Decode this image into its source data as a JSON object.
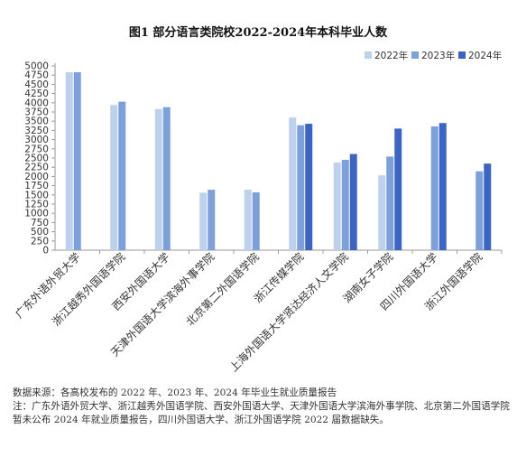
{
  "chart_data": {
    "type": "bar",
    "title": "图1  部分语言类院校2022-2024年本科毕业人数",
    "categories": [
      "广东外语外贸大学",
      "浙江越秀外国语学院",
      "西安外国语大学",
      "天津外国语大学滨海外事学院",
      "北京第二外国语学院",
      "浙江传媒学院",
      "上海外国语大学贤达经济人文学院",
      "湖南女子学院",
      "四川外国语大学",
      "浙江外国语学院"
    ],
    "series": [
      {
        "name": "2022年",
        "color": "#bdd1ec",
        "values": [
          4830,
          3940,
          3830,
          1560,
          1640,
          3600,
          2380,
          2030,
          null,
          null
        ]
      },
      {
        "name": "2023年",
        "color": "#7d9fda",
        "values": [
          4830,
          4030,
          3880,
          1640,
          1570,
          3390,
          2450,
          2540,
          3360,
          2140
        ]
      },
      {
        "name": "2024年",
        "color": "#3b64c4",
        "values": [
          null,
          null,
          null,
          null,
          null,
          3430,
          2610,
          3300,
          3450,
          2350
        ]
      }
    ],
    "ylim": [
      0,
      5000
    ],
    "yticks": [
      0,
      250,
      500,
      750,
      1000,
      1250,
      1500,
      1750,
      2000,
      2250,
      2500,
      2750,
      3000,
      3250,
      3500,
      3750,
      4000,
      4250,
      4500,
      4750,
      5000
    ],
    "grid": false,
    "legend": "top-right"
  },
  "notes": {
    "source": "数据来源：各高校发布的 2022 年、2023 年、2024 年毕业生就业质量报告",
    "note": "注：广东外语外贸大学、浙江越秀外国语学院、西安外国语大学、天津外国语大学滨海外事学院、北京第二外国语学院暂未公布 2024 年就业质量报告，四川外国语大学、浙江外国语学院 2022 届数据缺失。"
  }
}
